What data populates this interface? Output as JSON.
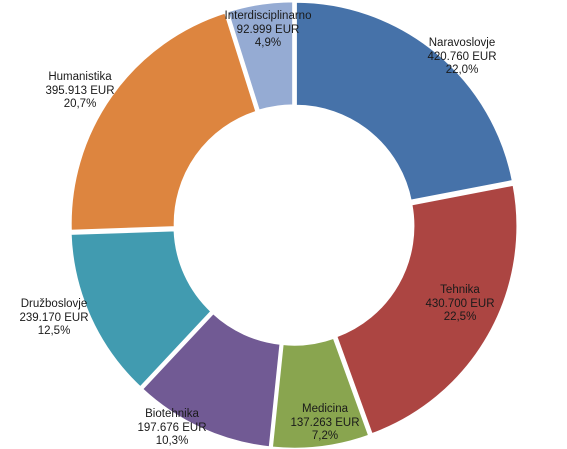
{
  "chart_data": {
    "type": "pie",
    "donut": true,
    "start_angle_deg": 0,
    "direction": "clockwise",
    "slices": [
      {
        "name": "Naravoslovje",
        "value": 420760,
        "value_label": "420.760 EUR",
        "percent_label": "22,0%",
        "percent": 22.0,
        "color": "#4672a9"
      },
      {
        "name": "Tehnika",
        "value": 430700,
        "value_label": "430.700 EUR",
        "percent_label": "22,5%",
        "percent": 22.5,
        "color": "#ac4542"
      },
      {
        "name": "Medicina",
        "value": 137263,
        "value_label": "137.263 EUR",
        "percent_label": "7,2%",
        "percent": 7.2,
        "color": "#89a54f"
      },
      {
        "name": "Biotehnika",
        "value": 197676,
        "value_label": "197.676 EUR",
        "percent_label": "10,3%",
        "percent": 10.3,
        "color": "#715a94"
      },
      {
        "name": "Družboslovje",
        "value": 239170,
        "value_label": "239.170 EUR",
        "percent_label": "12,5%",
        "percent": 12.5,
        "color": "#419bb0"
      },
      {
        "name": "Humanistika",
        "value": 395913,
        "value_label": "395.913 EUR",
        "percent_label": "20,7%",
        "percent": 20.7,
        "color": "#dd853f"
      },
      {
        "name": "Interdisciplinarno",
        "value": 92999,
        "value_label": "92.999 EUR",
        "percent_label": "4,9%",
        "percent": 4.9,
        "color": "#95abd3"
      }
    ]
  }
}
